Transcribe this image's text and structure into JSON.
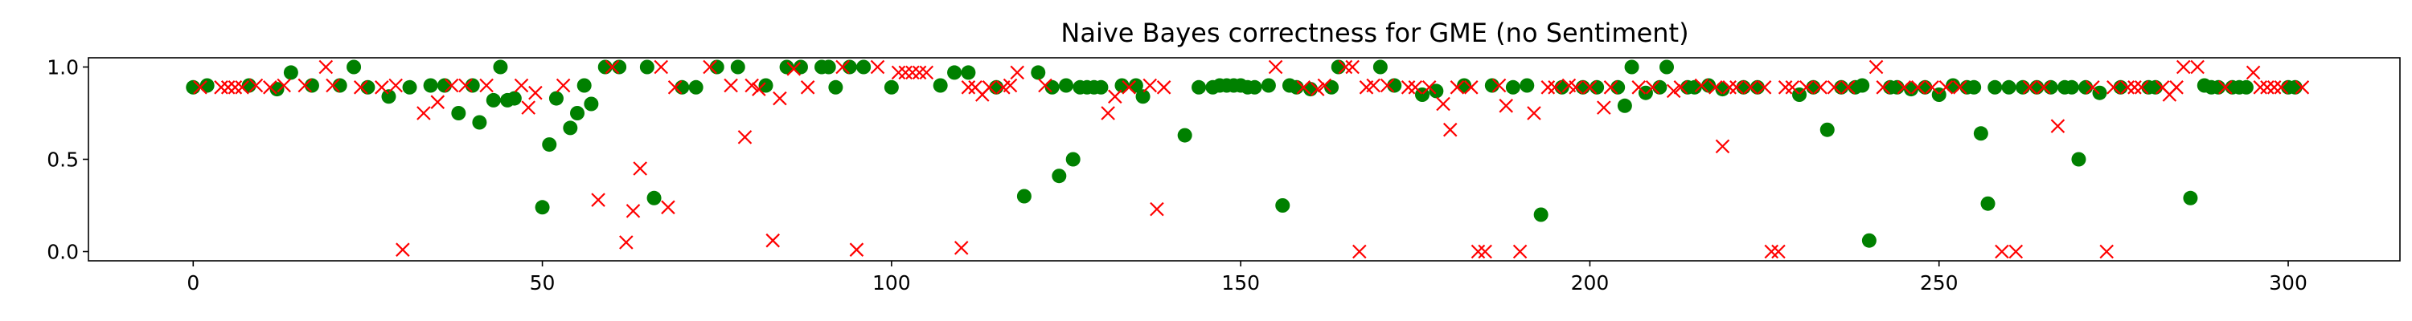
{
  "chart_data": {
    "type": "scatter",
    "title": "Naive Bayes correctness for GME (no Sentiment)",
    "xlabel": "",
    "ylabel": "",
    "xlim": [
      -15,
      316
    ],
    "ylim": [
      -0.05,
      1.05
    ],
    "x_ticks": [
      0,
      50,
      100,
      150,
      200,
      250,
      300
    ],
    "x_tick_labels": [
      "0",
      "50",
      "100",
      "150",
      "200",
      "250",
      "300"
    ],
    "y_ticks": [
      0.0,
      0.5,
      1.0
    ],
    "y_tick_labels": [
      "0.0",
      "0.5",
      "1.0"
    ],
    "grid": false,
    "legend": "none",
    "colors": {
      "correct": "#008000",
      "incorrect": "#ff0000"
    },
    "series": [
      {
        "marker": "circle",
        "color": "#008000",
        "x": [
          0,
          2,
          8,
          12,
          14,
          17,
          21,
          23,
          25,
          28,
          31,
          34,
          36,
          38,
          40,
          41,
          43,
          44,
          45,
          46,
          50,
          51,
          52,
          54,
          55,
          56,
          57,
          59,
          61,
          65,
          66,
          70,
          72,
          75,
          78,
          82,
          85,
          87,
          90,
          91,
          92,
          94,
          96,
          100,
          107,
          109,
          111,
          115,
          119,
          121,
          123,
          124,
          125,
          126,
          127,
          128,
          129,
          130,
          133,
          135,
          136,
          142,
          144,
          146,
          147,
          148,
          149,
          150,
          151,
          152,
          154,
          156,
          157,
          158,
          160,
          163,
          164,
          170,
          172,
          176,
          178,
          182,
          186,
          189,
          191,
          193,
          196,
          199,
          201,
          204,
          205,
          206,
          208,
          210,
          211,
          214,
          215,
          217,
          219,
          222,
          224,
          230,
          232,
          234,
          236,
          238,
          239,
          240,
          243,
          244,
          246,
          248,
          250,
          252,
          254,
          255,
          256,
          257,
          258,
          260,
          262,
          264,
          266,
          268,
          269,
          270,
          271,
          273,
          276,
          280,
          281,
          286,
          288,
          289,
          290,
          292,
          293,
          294,
          300,
          301
        ],
        "y": [
          0.89,
          0.9,
          0.9,
          0.88,
          0.97,
          0.9,
          0.9,
          1.0,
          0.89,
          0.84,
          0.89,
          0.9,
          0.9,
          0.75,
          0.9,
          0.7,
          0.82,
          1.0,
          0.82,
          0.83,
          0.24,
          0.58,
          0.83,
          0.67,
          0.75,
          0.9,
          0.8,
          1.0,
          1.0,
          1.0,
          0.29,
          0.89,
          0.89,
          1.0,
          1.0,
          0.9,
          1.0,
          1.0,
          1.0,
          1.0,
          0.89,
          1.0,
          1.0,
          0.89,
          0.9,
          0.97,
          0.97,
          0.89,
          0.3,
          0.97,
          0.89,
          0.41,
          0.9,
          0.5,
          0.89,
          0.89,
          0.89,
          0.89,
          0.9,
          0.9,
          0.84,
          0.63,
          0.89,
          0.89,
          0.9,
          0.9,
          0.9,
          0.9,
          0.89,
          0.89,
          0.9,
          0.25,
          0.9,
          0.89,
          0.88,
          0.89,
          1.0,
          1.0,
          0.9,
          0.85,
          0.87,
          0.9,
          0.9,
          0.89,
          0.9,
          0.2,
          0.89,
          0.89,
          0.89,
          0.89,
          0.79,
          1.0,
          0.86,
          0.89,
          1.0,
          0.89,
          0.89,
          0.9,
          0.88,
          0.89,
          0.89,
          0.85,
          0.89,
          0.66,
          0.89,
          0.89,
          0.9,
          0.06,
          0.89,
          0.89,
          0.88,
          0.89,
          0.85,
          0.9,
          0.89,
          0.89,
          0.64,
          0.26,
          0.89,
          0.89,
          0.89,
          0.89,
          0.89,
          0.89,
          0.89,
          0.5,
          0.89,
          0.86,
          0.89,
          0.89,
          0.89,
          0.29,
          0.9,
          0.89,
          0.89,
          0.89,
          0.89,
          0.89,
          0.89,
          0.89
        ]
      },
      {
        "marker": "x",
        "color": "#ff0000",
        "x": [
          1,
          4,
          5,
          6,
          7,
          9,
          11,
          13,
          16,
          19,
          20,
          24,
          27,
          29,
          30,
          33,
          35,
          37,
          39,
          42,
          47,
          48,
          49,
          53,
          58,
          60,
          62,
          63,
          64,
          67,
          68,
          69,
          74,
          77,
          79,
          80,
          81,
          83,
          84,
          86,
          88,
          93,
          95,
          98,
          101,
          102,
          103,
          104,
          105,
          110,
          111,
          112,
          113,
          114,
          116,
          117,
          118,
          122,
          131,
          132,
          134,
          137,
          138,
          139,
          155,
          159,
          161,
          162,
          165,
          166,
          167,
          168,
          169,
          171,
          174,
          175,
          177,
          179,
          180,
          181,
          183,
          184,
          185,
          187,
          188,
          190,
          192,
          194,
          195,
          197,
          198,
          200,
          202,
          203,
          207,
          209,
          212,
          213,
          216,
          218,
          219,
          220,
          221,
          223,
          225,
          226,
          227,
          228,
          229,
          231,
          233,
          235,
          237,
          241,
          242,
          245,
          247,
          249,
          251,
          253,
          259,
          261,
          263,
          265,
          267,
          272,
          274,
          275,
          277,
          278,
          279,
          282,
          283,
          284,
          285,
          287,
          291,
          295,
          296,
          297,
          298,
          299,
          302
        ],
        "y": [
          0.89,
          0.89,
          0.89,
          0.89,
          0.89,
          0.9,
          0.89,
          0.9,
          0.9,
          1.0,
          0.9,
          0.89,
          0.89,
          0.9,
          0.01,
          0.75,
          0.81,
          0.9,
          0.9,
          0.9,
          0.9,
          0.78,
          0.86,
          0.9,
          0.28,
          1.0,
          0.05,
          0.22,
          0.45,
          1.0,
          0.24,
          0.89,
          1.0,
          0.9,
          0.62,
          0.9,
          0.88,
          0.06,
          0.83,
          0.99,
          0.89,
          1.0,
          0.01,
          1.0,
          0.97,
          0.97,
          0.97,
          0.97,
          0.97,
          0.02,
          0.89,
          0.89,
          0.85,
          0.89,
          0.89,
          0.9,
          0.97,
          0.9,
          0.75,
          0.84,
          0.89,
          0.9,
          0.23,
          0.89,
          1.0,
          0.89,
          0.88,
          0.9,
          1.0,
          1.0,
          0.0,
          0.89,
          0.9,
          0.9,
          0.89,
          0.89,
          0.89,
          0.8,
          0.66,
          0.89,
          0.89,
          0.0,
          0.0,
          0.9,
          0.79,
          0.0,
          0.75,
          0.89,
          0.89,
          0.9,
          0.89,
          0.89,
          0.78,
          0.89,
          0.89,
          0.89,
          0.87,
          0.89,
          0.9,
          0.89,
          0.57,
          0.89,
          0.89,
          0.89,
          0.89,
          0.0,
          0.0,
          0.89,
          0.89,
          0.89,
          0.89,
          0.89,
          0.89,
          1.0,
          0.89,
          0.89,
          0.89,
          0.89,
          0.89,
          0.89,
          0.0,
          0.0,
          0.89,
          0.89,
          0.68,
          0.89,
          0.0,
          0.89,
          0.89,
          0.89,
          0.89,
          0.89,
          0.85,
          0.89,
          1.0,
          1.0,
          0.89,
          0.97,
          0.89,
          0.89,
          0.89,
          0.89,
          0.89
        ]
      }
    ]
  }
}
